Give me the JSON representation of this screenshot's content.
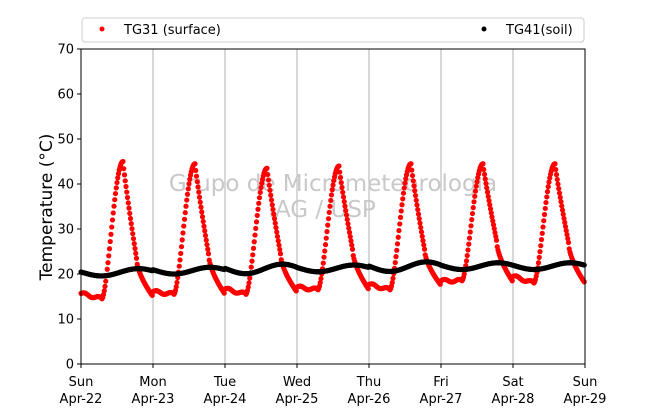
{
  "chart_data": {
    "type": "scatter",
    "title": "",
    "xlabel": "",
    "ylabel": "Temperature (°C)",
    "ylim": [
      0,
      70
    ],
    "yticks": [
      0,
      10,
      20,
      30,
      40,
      50,
      60,
      70
    ],
    "xlim": [
      "2018-04-22 00:00",
      "2018-04-29 00:00"
    ],
    "xticks": [
      {
        "day": "Sun",
        "date": "Apr-22"
      },
      {
        "day": "Mon",
        "date": "Apr-23"
      },
      {
        "day": "Tue",
        "date": "Apr-24"
      },
      {
        "day": "Wed",
        "date": "Apr-25"
      },
      {
        "day": "Thu",
        "date": "Apr-26"
      },
      {
        "day": "Fri",
        "date": "Apr-27"
      },
      {
        "day": "Sat",
        "date": "Apr-28"
      },
      {
        "day": "Sun",
        "date": "Apr-29"
      }
    ],
    "grid": "vertical-at-day-ticks",
    "legend_placement": "top",
    "watermark": [
      "Grupo de Micrometeorologia",
      "IAG / USP"
    ],
    "series": [
      {
        "name": "TG31 (surface)",
        "color": "#ff0000",
        "marker": "circle",
        "daily_profile": {
          "Apr-22": {
            "night_min": 14.5,
            "peak_max": 45.0
          },
          "Apr-23": {
            "night_min": 15.5,
            "peak_max": 44.5
          },
          "Apr-24": {
            "night_min": 15.5,
            "peak_max": 43.5
          },
          "Apr-25": {
            "night_min": 16.5,
            "peak_max": 44.0
          },
          "Apr-26": {
            "night_min": 16.5,
            "peak_max": 44.5
          },
          "Apr-27": {
            "night_min": 18.5,
            "peak_max": 44.5
          },
          "Apr-28": {
            "night_min": 18.0,
            "peak_max": 44.5
          }
        },
        "peak_hour": 14
      },
      {
        "name": "TG41(soil)",
        "color": "#000000",
        "marker": "circle",
        "daily_profile": {
          "Apr-22": {
            "night_min": 19.5,
            "peak_max": 21.0
          },
          "Apr-23": {
            "night_min": 20.0,
            "peak_max": 21.5
          },
          "Apr-24": {
            "night_min": 20.0,
            "peak_max": 22.0
          },
          "Apr-25": {
            "night_min": 20.5,
            "peak_max": 22.0
          },
          "Apr-26": {
            "night_min": 20.5,
            "peak_max": 22.5
          },
          "Apr-27": {
            "night_min": 21.0,
            "peak_max": 22.5
          },
          "Apr-28": {
            "night_min": 21.0,
            "peak_max": 22.5
          }
        },
        "peak_hour": 19
      }
    ]
  }
}
